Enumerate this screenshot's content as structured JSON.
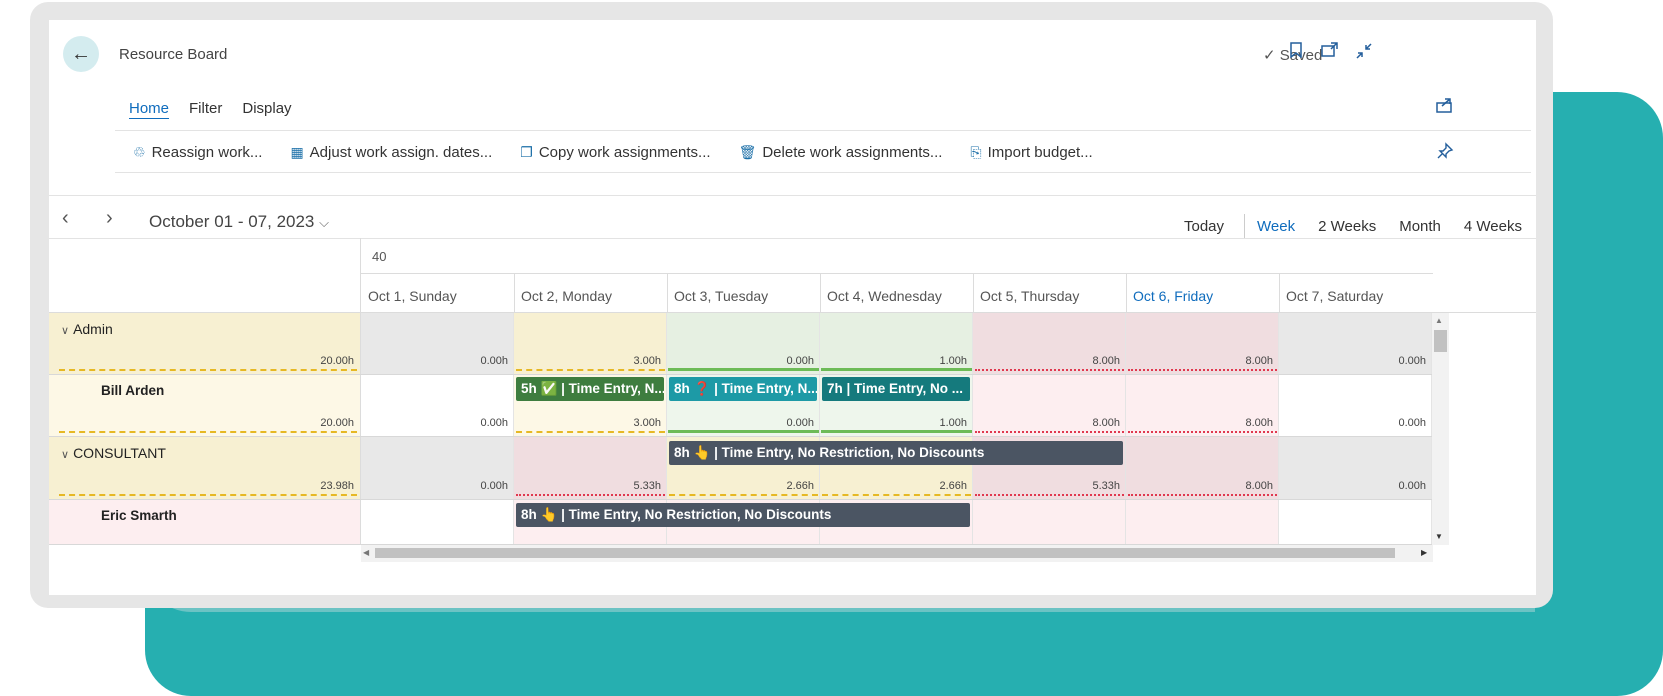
{
  "header": {
    "title": "Resource Board",
    "saved_label": "Saved"
  },
  "tabs": [
    {
      "label": "Home"
    },
    {
      "label": "Filter"
    },
    {
      "label": "Display"
    }
  ],
  "actions": [
    {
      "label": "Reassign work...",
      "icon": "reassign-icon"
    },
    {
      "label": "Adjust work assign. dates...",
      "icon": "calendar-grid-icon"
    },
    {
      "label": "Copy work assignments...",
      "icon": "copy-icon"
    },
    {
      "label": "Delete work assignments...",
      "icon": "trash-icon"
    },
    {
      "label": "Import budget...",
      "icon": "import-icon"
    }
  ],
  "date_range": "October 01 - 07, 2023",
  "views": {
    "today": "Today",
    "week": "Week",
    "two_weeks": "2 Weeks",
    "month": "Month",
    "four_weeks": "4 Weeks"
  },
  "week_number": "40",
  "days": [
    "Oct 1, Sunday",
    "Oct 2, Monday",
    "Oct 3, Tuesday",
    "Oct 4, Wednesday",
    "Oct 5, Thursday",
    "Oct 6, Friday",
    "Oct 7, Saturday"
  ],
  "rows": [
    {
      "name": "Admin",
      "total": "20.00h",
      "values": [
        "0.00h",
        "3.00h",
        "0.00h",
        "1.00h",
        "8.00h",
        "8.00h",
        "0.00h"
      ]
    },
    {
      "name": "Bill Arden",
      "total": "20.00h",
      "values": [
        "0.00h",
        "3.00h",
        "0.00h",
        "1.00h",
        "8.00h",
        "8.00h",
        "0.00h"
      ]
    },
    {
      "name": "CONSULTANT",
      "total": "23.98h",
      "values": [
        "0.00h",
        "5.33h",
        "2.66h",
        "2.66h",
        "5.33h",
        "8.00h",
        "0.00h"
      ]
    },
    {
      "name": "Eric Smarth",
      "total": "",
      "values": []
    }
  ],
  "assignments": [
    {
      "label": "5h ✅ | Time Entry, N..."
    },
    {
      "label": "8h ❓ | Time Entry, N..."
    },
    {
      "label": "7h | Time Entry, No ..."
    },
    {
      "label": "8h 👆 | Time Entry, No Restriction, No Discounts"
    },
    {
      "label": "8h 👆 | Time Entry, No Restriction, No Discounts"
    }
  ],
  "colors": {
    "accent": "#0f6cbd",
    "teal_bg": "#26afb0",
    "bar_green": "#3e7d3f",
    "bar_teal": "#1d9aa6",
    "bar_darkteal": "#157a7d",
    "bar_slate": "#4b5563"
  }
}
